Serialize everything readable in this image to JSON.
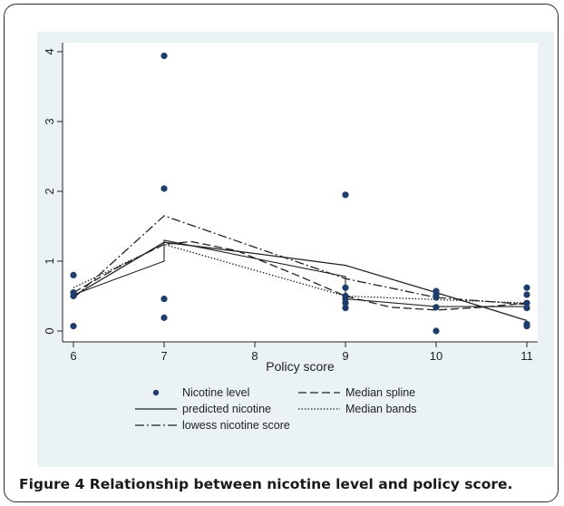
{
  "caption": {
    "label": "Figure 4",
    "text": "Relationship between nicotine level and policy score."
  },
  "chart_data": {
    "type": "scatter",
    "xlabel": "Policy score",
    "ylabel": "Nicotine level",
    "xlim": [
      6,
      11
    ],
    "ylim": [
      0,
      4
    ],
    "xticks": [
      6,
      7,
      8,
      9,
      10,
      11
    ],
    "yticks": [
      0,
      1,
      2,
      3,
      4
    ],
    "grid": false,
    "legend_position": "bottom",
    "scatter": {
      "name": "Nicotine level",
      "color": "#1f3d6b",
      "points": [
        [
          6,
          0.07
        ],
        [
          6,
          0.5
        ],
        [
          6,
          0.55
        ],
        [
          6,
          0.8
        ],
        [
          7,
          0.19
        ],
        [
          7,
          0.46
        ],
        [
          7,
          2.04
        ],
        [
          7,
          3.94
        ],
        [
          9,
          0.33
        ],
        [
          9,
          0.4
        ],
        [
          9,
          0.46
        ],
        [
          9,
          0.5
        ],
        [
          9,
          0.62
        ],
        [
          9,
          1.95
        ],
        [
          10,
          0.0
        ],
        [
          10,
          0.34
        ],
        [
          10,
          0.48
        ],
        [
          10,
          0.52
        ],
        [
          10,
          0.57
        ],
        [
          11,
          0.07
        ],
        [
          11,
          0.1
        ],
        [
          11,
          0.33
        ],
        [
          11,
          0.4
        ],
        [
          11,
          0.52
        ],
        [
          11,
          0.62
        ]
      ]
    },
    "series": [
      {
        "name": "predicted nicotine",
        "dash": "solid",
        "points": [
          [
            6,
            0.5
          ],
          [
            7,
            1.27
          ],
          [
            8,
            1.11
          ],
          [
            9,
            0.94
          ],
          [
            10,
            0.55
          ],
          [
            11,
            0.15
          ]
        ]
      },
      {
        "name": "lowess nicotine score",
        "dash": "dashdot",
        "points": [
          [
            6,
            0.47
          ],
          [
            7,
            1.65
          ],
          [
            8,
            1.2
          ],
          [
            9,
            0.75
          ],
          [
            10,
            0.48
          ],
          [
            11,
            0.38
          ]
        ]
      },
      {
        "name": "Median spline",
        "dash": "dashed",
        "points": [
          [
            6,
            0.55
          ],
          [
            6.5,
            0.92
          ],
          [
            7,
            1.24
          ],
          [
            7.3,
            1.28
          ],
          [
            7.8,
            1.15
          ],
          [
            8.5,
            0.78
          ],
          [
            9,
            0.5
          ],
          [
            9.5,
            0.34
          ],
          [
            10,
            0.3
          ],
          [
            10.5,
            0.34
          ],
          [
            11,
            0.4
          ]
        ]
      },
      {
        "name": "Median bands",
        "dash": "dotted",
        "points": [
          [
            6,
            0.62
          ],
          [
            7,
            1.24
          ],
          [
            9,
            0.5
          ],
          [
            10,
            0.45
          ],
          [
            11,
            0.4
          ]
        ]
      }
    ],
    "median_bands_step": {
      "points": [
        [
          6,
          0.52
        ],
        [
          7,
          1.0
        ],
        [
          7,
          1.3
        ],
        [
          9,
          0.78
        ],
        [
          9,
          0.46
        ],
        [
          10,
          0.35
        ],
        [
          11,
          0.35
        ]
      ]
    }
  }
}
